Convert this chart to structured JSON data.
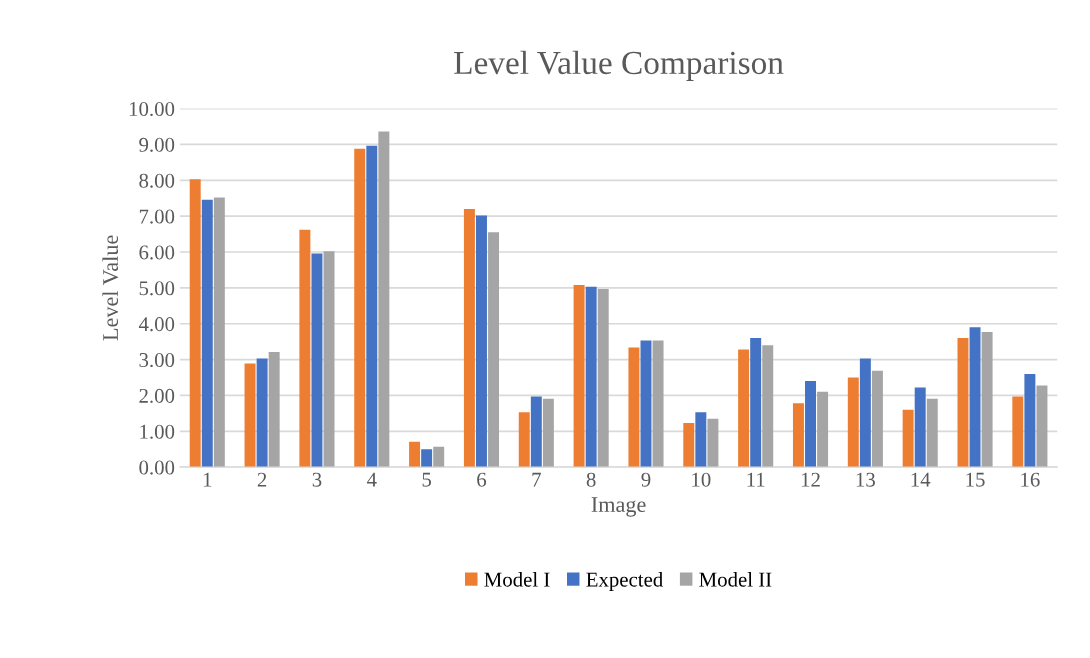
{
  "chart_data": {
    "type": "bar",
    "title": "Level Value Comparison",
    "xlabel": "Image",
    "ylabel": "Level Value",
    "categories": [
      "1",
      "2",
      "3",
      "4",
      "5",
      "6",
      "7",
      "8",
      "9",
      "10",
      "11",
      "12",
      "13",
      "14",
      "15",
      "16"
    ],
    "series": [
      {
        "name": "Model I",
        "color": "#ed7d31",
        "values": [
          8.03,
          2.89,
          6.62,
          8.88,
          0.71,
          7.2,
          1.53,
          5.08,
          3.34,
          1.23,
          3.28,
          1.78,
          2.5,
          1.6,
          3.6,
          1.97
        ]
      },
      {
        "name": "Expected",
        "color": "#4472c4",
        "values": [
          7.46,
          3.03,
          5.96,
          8.96,
          0.5,
          7.02,
          1.97,
          5.03,
          3.53,
          1.53,
          3.6,
          2.4,
          3.03,
          2.22,
          3.9,
          2.6
        ]
      },
      {
        "name": "Model II",
        "color": "#a5a5a5",
        "values": [
          7.52,
          3.21,
          6.02,
          9.36,
          0.57,
          6.55,
          1.91,
          4.97,
          3.53,
          1.35,
          3.4,
          2.1,
          2.69,
          1.91,
          3.77,
          2.28
        ]
      }
    ],
    "ylim": [
      0,
      10
    ],
    "yticks": [
      {
        "value": 0,
        "label": "0.00"
      },
      {
        "value": 1,
        "label": "1.00"
      },
      {
        "value": 2,
        "label": "2.00"
      },
      {
        "value": 3,
        "label": "3.00"
      },
      {
        "value": 4,
        "label": "4.00"
      },
      {
        "value": 5,
        "label": "5.00"
      },
      {
        "value": 6,
        "label": "6.00"
      },
      {
        "value": 7,
        "label": "7.00"
      },
      {
        "value": 8,
        "label": "8.00"
      },
      {
        "value": 9,
        "label": "9.00"
      },
      {
        "value": 10,
        "label": "10.00"
      }
    ],
    "grid": "y",
    "legend": "bottom"
  }
}
